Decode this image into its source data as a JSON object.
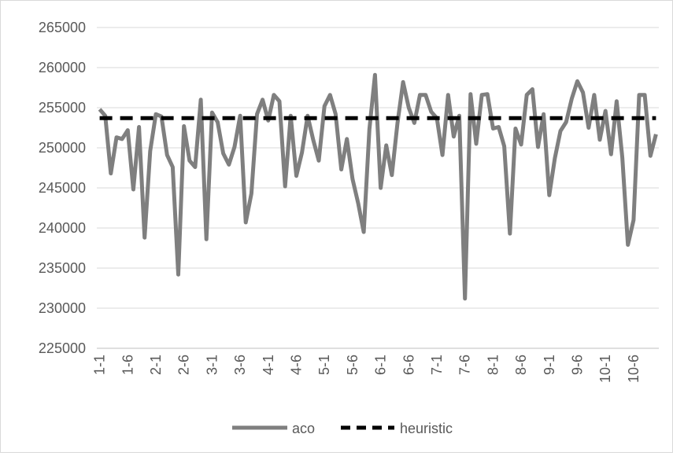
{
  "chart_data": {
    "type": "line",
    "title": "",
    "xlabel": "",
    "ylabel": "",
    "ylim": [
      225000,
      265000
    ],
    "yticks": [
      225000,
      230000,
      235000,
      240000,
      245000,
      250000,
      255000,
      260000,
      265000
    ],
    "grid": true,
    "legend_position": "bottom",
    "tick_labels": [
      "1-1",
      "1-6",
      "2-1",
      "2-6",
      "3-1",
      "3-6",
      "4-1",
      "4-6",
      "5-1",
      "5-6",
      "6-1",
      "6-6",
      "7-1",
      "7-6",
      "8-1",
      "8-6",
      "9-1",
      "9-6",
      "10-1",
      "10-6"
    ],
    "tick_every": 5,
    "series": [
      {
        "name": "aco",
        "color": "#7f7f7f",
        "style": "solid",
        "values": [
          254800,
          254000,
          246800,
          251300,
          251100,
          252200,
          244800,
          252600,
          238800,
          249600,
          254200,
          253900,
          249100,
          247600,
          234200,
          252700,
          248400,
          247600,
          256000,
          238600,
          254400,
          253200,
          249300,
          247900,
          250100,
          254000,
          240700,
          244300,
          254200,
          256000,
          253400,
          256600,
          255800,
          245200,
          254000,
          246500,
          249400,
          254000,
          251000,
          248400,
          255200,
          256600,
          254200,
          247300,
          251100,
          246100,
          243100,
          239500,
          252300,
          259100,
          245000,
          250300,
          246600,
          253100,
          258200,
          255000,
          253100,
          256600,
          256600,
          254500,
          253700,
          249100,
          256600,
          251400,
          254000,
          231200,
          256700,
          250500,
          256600,
          256700,
          252400,
          252600,
          250200,
          239300,
          252400,
          250400,
          256600,
          257300,
          250100,
          254200,
          244100,
          248700,
          252100,
          253200,
          256100,
          258300,
          256900,
          252500,
          256600,
          251000,
          254600,
          249200,
          255800,
          248800,
          237900,
          241000,
          256600,
          256600,
          249000,
          251700
        ]
      },
      {
        "name": "heuristic",
        "color": "#000000",
        "style": "dashed",
        "values": [
          253700,
          253700,
          253700,
          253700,
          253700,
          253700,
          253700,
          253700,
          253700,
          253700,
          253700,
          253700,
          253700,
          253700,
          253700,
          253700,
          253700,
          253700,
          253700,
          253700,
          253700,
          253700,
          253700,
          253700,
          253700,
          253700,
          253700,
          253700,
          253700,
          253700,
          253700,
          253700,
          253700,
          253700,
          253700,
          253700,
          253700,
          253700,
          253700,
          253700,
          253700,
          253700,
          253700,
          253700,
          253700,
          253700,
          253700,
          253700,
          253700,
          253700,
          253700,
          253700,
          253700,
          253700,
          253700,
          253700,
          253700,
          253700,
          253700,
          253700,
          253700,
          253700,
          253700,
          253700,
          253700,
          253700,
          253700,
          253700,
          253700,
          253700,
          253700,
          253700,
          253700,
          253700,
          253700,
          253700,
          253700,
          253700,
          253700,
          253700,
          253700,
          253700,
          253700,
          253700,
          253700,
          253700,
          253700,
          253700,
          253700,
          253700,
          253700,
          253700,
          253700,
          253700,
          253700,
          253700,
          253700,
          253700,
          253700,
          253700
        ]
      }
    ]
  }
}
